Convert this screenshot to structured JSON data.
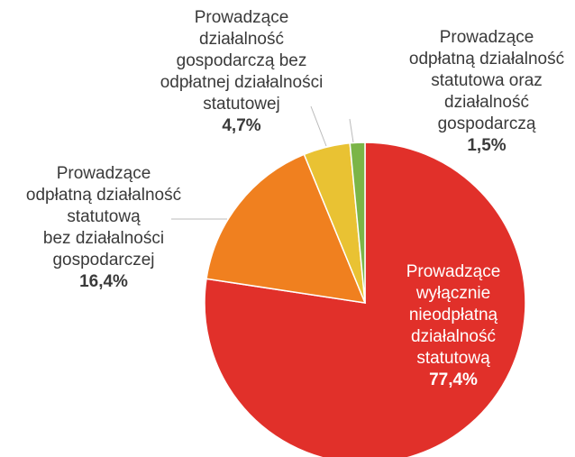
{
  "chart_data": {
    "type": "pie",
    "categories": [
      [
        "Prowadzące",
        "wyłącznie",
        "nieodpłatną",
        "działalność",
        "statutową"
      ],
      [
        "Prowadzące",
        "odpłatną działalność",
        "statutową",
        "bez działalności",
        "gospodarczej"
      ],
      [
        "Prowadzące",
        "działalność",
        "gospodarczą bez",
        "odpłatnej działalności",
        "statutowej"
      ],
      [
        "Prowadzące",
        "odpłatną działalność",
        "statutowa oraz",
        "działalność",
        "gospodarczą"
      ]
    ],
    "values": [
      77.4,
      16.4,
      4.7,
      1.5
    ],
    "value_labels": [
      "77,4%",
      "16,4%",
      "4,7%",
      "1,5%"
    ],
    "colors": [
      "#e1302a",
      "#f0801f",
      "#e9c233",
      "#7bb547"
    ]
  }
}
